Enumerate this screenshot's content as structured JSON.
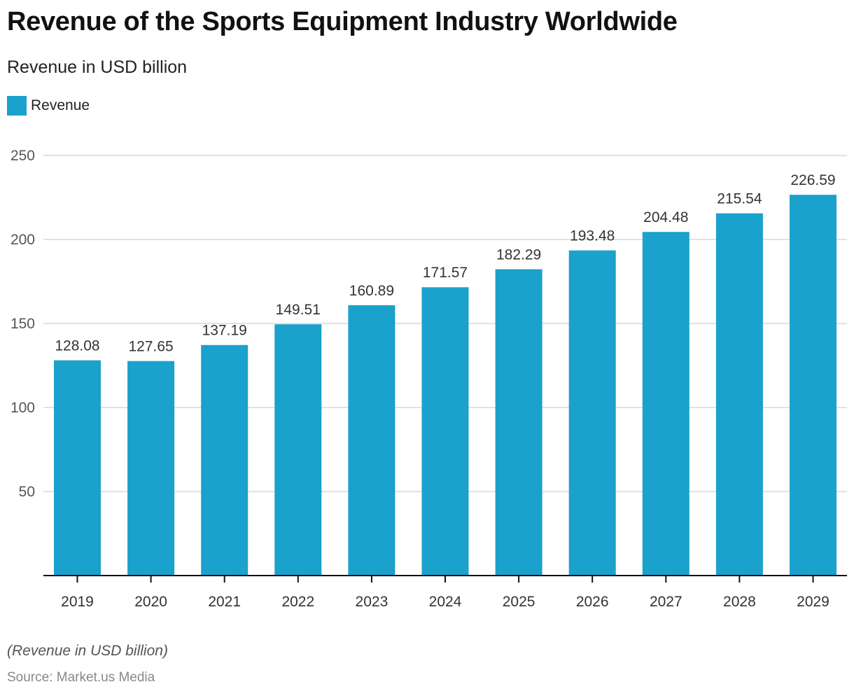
{
  "chart_data": {
    "type": "bar",
    "title": "Revenue of the Sports Equipment Industry Worldwide",
    "subtitle": "Revenue in USD billion",
    "xlabel": "",
    "ylabel": "",
    "categories": [
      "2019",
      "2020",
      "2021",
      "2022",
      "2023",
      "2024",
      "2025",
      "2026",
      "2027",
      "2028",
      "2029"
    ],
    "series": [
      {
        "name": "Revenue",
        "color": "#1aa1cc",
        "values": [
          128.08,
          127.65,
          137.19,
          149.51,
          160.89,
          171.57,
          182.29,
          193.48,
          204.48,
          215.54,
          226.59
        ],
        "labels": [
          "128.08",
          "127.65",
          "137.19",
          "149.51",
          "160.89",
          "171.57",
          "182.29",
          "193.48",
          "204.48",
          "215.54",
          "226.59"
        ]
      }
    ],
    "ylim": [
      0,
      250
    ],
    "yticks": [
      50,
      100,
      150,
      200,
      250
    ],
    "grid": true,
    "legend": "top-left",
    "note": "(Revenue in USD billion)",
    "source": "Source: Market.us Media"
  },
  "colors": {
    "bar": "#1aa1cc",
    "grid": "#d9d9d9",
    "axis": "#111111"
  }
}
